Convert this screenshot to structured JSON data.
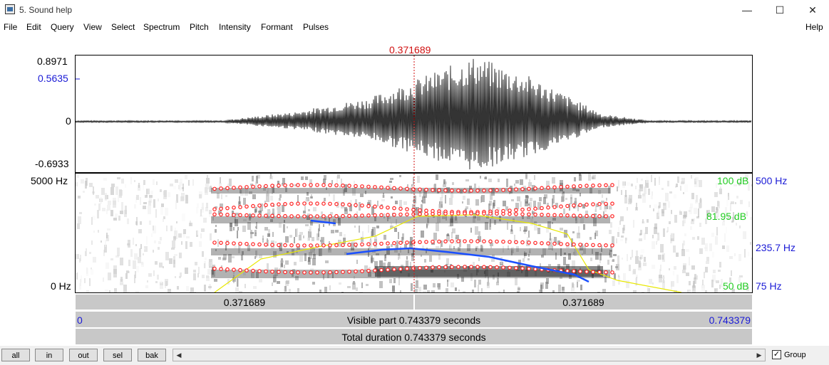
{
  "window": {
    "title": "5. Sound help",
    "minimize": "—",
    "maximize": "☐",
    "close": "✕"
  },
  "menu": [
    "File",
    "Edit",
    "Query",
    "View",
    "Select",
    "Spectrum",
    "Pitch",
    "Intensity",
    "Formant",
    "Pulses"
  ],
  "menu_help": "Help",
  "cursor": {
    "time_label": "0.371689"
  },
  "waveform": {
    "max": "0.8971",
    "marker": "0.5635",
    "zero": "0",
    "min": "-0.6933"
  },
  "spectrogram": {
    "top_freq": "5000 Hz",
    "bottom_freq": "0 Hz"
  },
  "right_axis": {
    "pitch_top": "500 Hz",
    "pitch_mark": "235.7 Hz",
    "pitch_bottom": "75 Hz",
    "intensity_top": "100 dB",
    "intensity_mark": "81.95 dB",
    "intensity_bottom": "50 dB"
  },
  "time_bar": {
    "left": "0.371689",
    "right": "0.371689"
  },
  "visible_bar": {
    "start": "0",
    "label": "Visible part 0.743379 seconds",
    "end": "0.743379"
  },
  "total_bar": {
    "label": "Total duration 0.743379 seconds"
  },
  "buttons": {
    "all": "all",
    "in": "in",
    "out": "out",
    "sel": "sel",
    "bak": "bak"
  },
  "group": {
    "label": "Group",
    "checked": "✓"
  },
  "colors": {
    "cursor": "#d01010",
    "pitch": "#1a4fff",
    "intensity": "#e8e800",
    "formant": "#ff2020"
  }
}
